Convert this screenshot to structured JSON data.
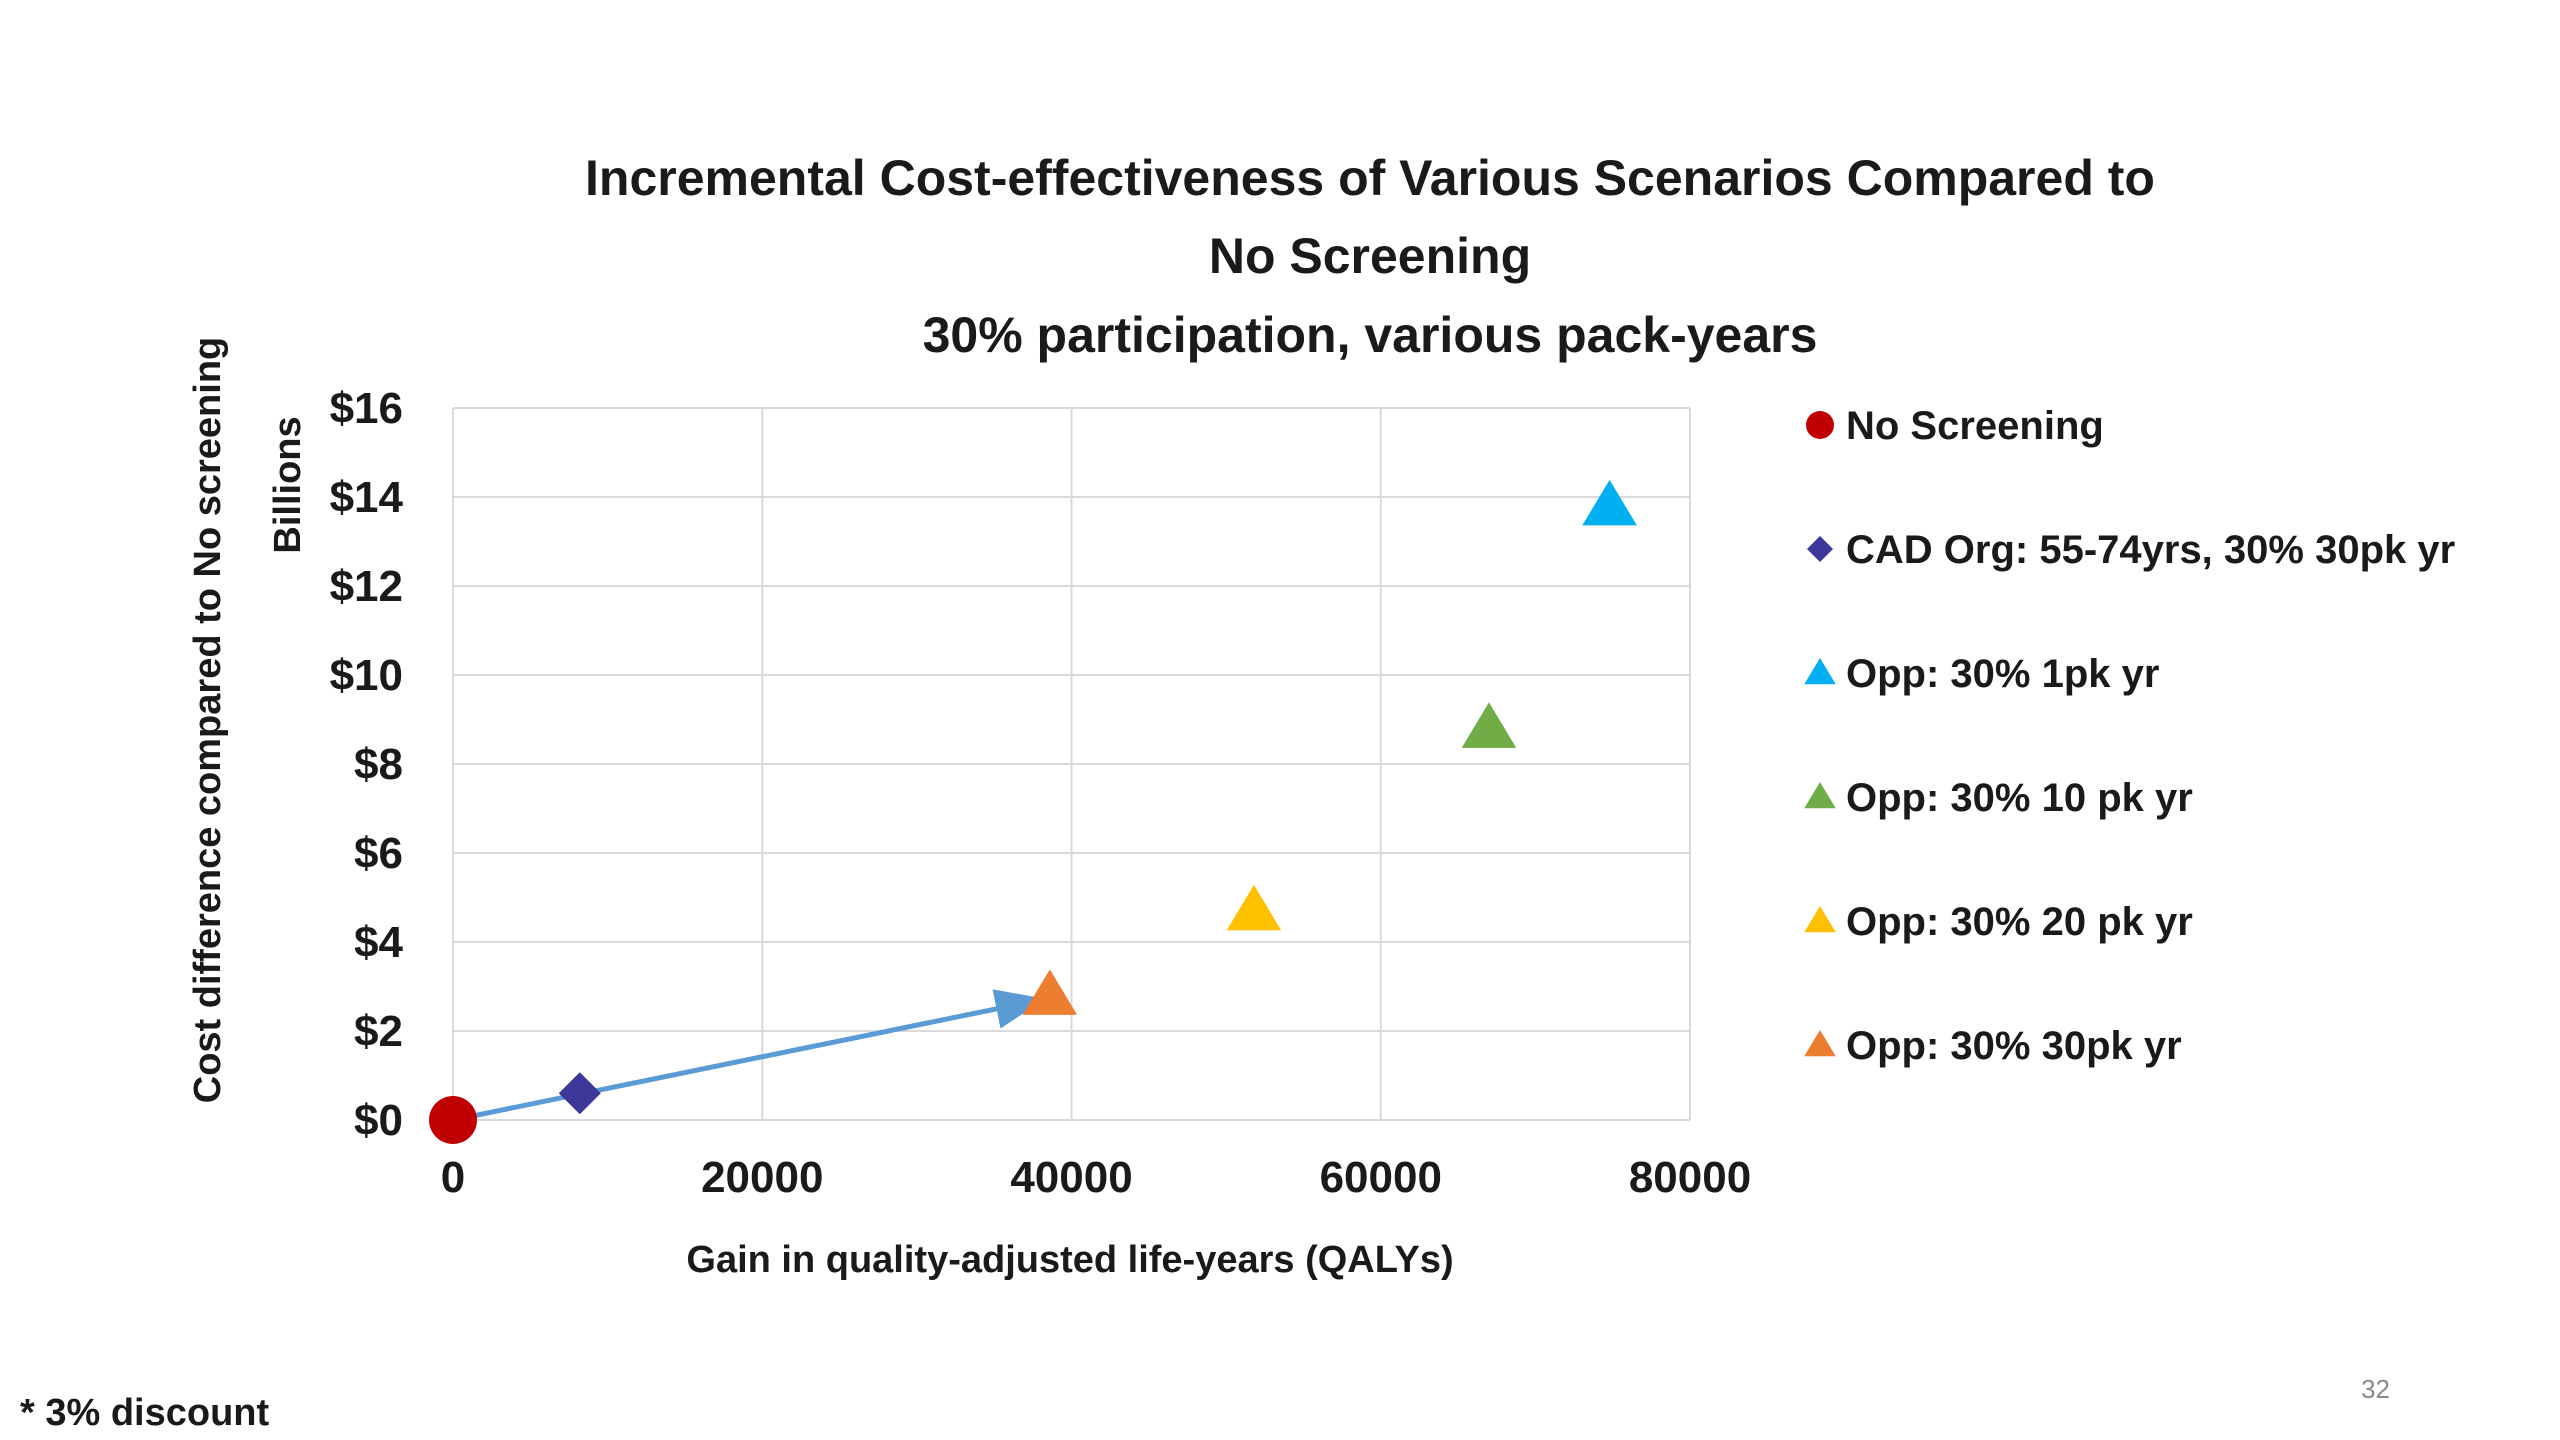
{
  "colors": {
    "no_screening": "#c00000",
    "cad_org": "#3c3799",
    "opp_1pk": "#00b0f0",
    "opp_10pk": "#70ad47",
    "opp_20pk": "#ffc000",
    "opp_30pk": "#ed7d31",
    "arrow": "#5b9bd5",
    "grid": "#d9d9d9",
    "text": "#1a1a1a"
  },
  "chart_data": {
    "type": "scatter",
    "title_lines": [
      "Incremental Cost-effectiveness of Various Scenarios Compared to",
      "No Screening",
      "30% participation, various pack-years"
    ],
    "xlabel": "Gain in quality-adjusted life-years (QALYs)",
    "ylabel": "Cost difference compared to No screening",
    "ylabel_units": "Billions",
    "xlim": [
      0,
      80000
    ],
    "ylim": [
      0,
      16
    ],
    "x_ticks": [
      0,
      20000,
      40000,
      60000,
      80000
    ],
    "x_tick_labels": [
      "0",
      "20000",
      "40000",
      "60000",
      "80000"
    ],
    "y_ticks": [
      0,
      2,
      4,
      6,
      8,
      10,
      12,
      14,
      16
    ],
    "y_tick_labels": [
      "$0",
      "$2",
      "$4",
      "$6",
      "$8",
      "$10",
      "$12",
      "$14",
      "$16"
    ],
    "grid": true,
    "legend_position": "right",
    "series": [
      {
        "name": "No Screening",
        "marker": "circle",
        "color_key": "no_screening",
        "x": 0,
        "y": 0
      },
      {
        "name": "CAD Org: 55-74yrs, 30% 30pk yr",
        "marker": "diamond",
        "color_key": "cad_org",
        "x": 8200,
        "y": 0.6
      },
      {
        "name": "Opp: 30% 1pk yr",
        "marker": "triangle",
        "color_key": "opp_1pk",
        "x": 74800,
        "y": 13.8
      },
      {
        "name": "Opp: 30% 10 pk yr",
        "marker": "triangle",
        "color_key": "opp_10pk",
        "x": 67000,
        "y": 8.8
      },
      {
        "name": "Opp: 30% 20 pk yr",
        "marker": "triangle",
        "color_key": "opp_20pk",
        "x": 51800,
        "y": 4.7
      },
      {
        "name": "Opp: 30% 30pk yr",
        "marker": "triangle",
        "color_key": "opp_30pk",
        "x": 38600,
        "y": 2.8
      }
    ],
    "annotations": [
      {
        "type": "arrow",
        "from": {
          "x": 0,
          "y": 0
        },
        "to": {
          "x": 38000,
          "y": 2.7
        },
        "color_key": "arrow"
      }
    ]
  },
  "footnote": "* 3% discount",
  "page_number": "32"
}
